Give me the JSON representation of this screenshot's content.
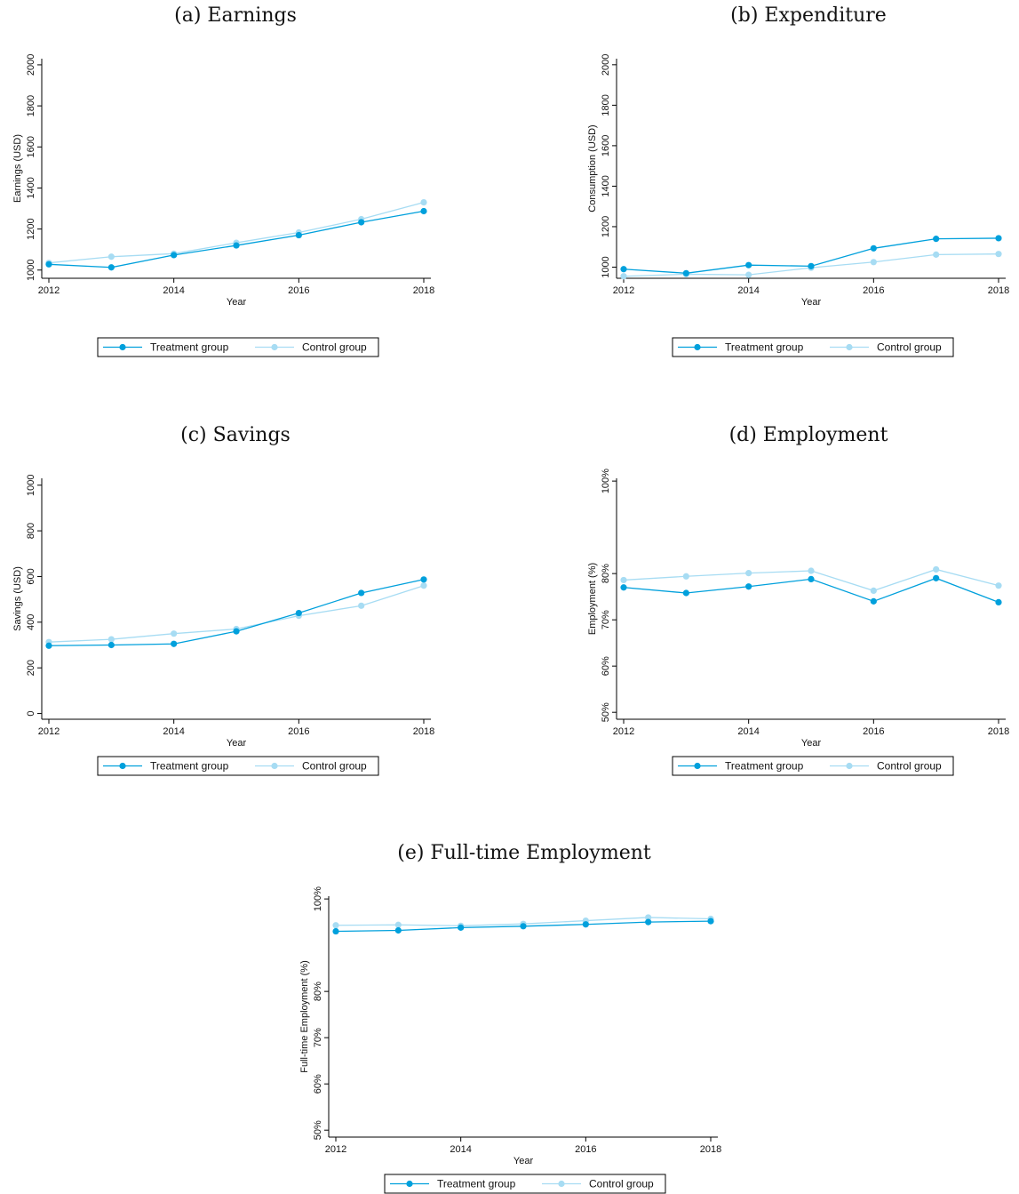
{
  "colors": {
    "treatment": "#00a0dc",
    "control": "#a7dcf3"
  },
  "chart_data": [
    {
      "id": "a",
      "type": "line",
      "title": "(a) Earnings",
      "xlabel": "Year",
      "ylabel": "Earnings (USD)",
      "x": [
        2012,
        2013,
        2014,
        2015,
        2016,
        2017,
        2018
      ],
      "xticks": [
        "2012",
        "2014",
        "2016",
        "2018"
      ],
      "yticks": [
        "1000",
        "1200",
        "1400",
        "1600",
        "1800",
        "2000"
      ],
      "ylim": [
        960,
        2030
      ],
      "grid": false,
      "legend": "bottom",
      "series": [
        {
          "name": "Treatment group",
          "values": [
            1028,
            1013,
            1073,
            1120,
            1170,
            1233,
            1287
          ]
        },
        {
          "name": "Control group",
          "values": [
            1035,
            1065,
            1080,
            1133,
            1183,
            1248,
            1330
          ]
        }
      ]
    },
    {
      "id": "b",
      "type": "line",
      "title": "(b) Expenditure",
      "xlabel": "Year",
      "ylabel": "Consumption (USD)",
      "x": [
        2012,
        2013,
        2014,
        2015,
        2016,
        2017,
        2018
      ],
      "xticks": [
        "2012",
        "2014",
        "2016",
        "2018"
      ],
      "yticks": [
        "1000",
        "1200",
        "1400",
        "1600",
        "1800",
        "2000"
      ],
      "ylim": [
        945,
        2030
      ],
      "grid": false,
      "legend": "bottom",
      "series": [
        {
          "name": "Treatment group",
          "values": [
            990,
            970,
            1010,
            1005,
            1093,
            1140,
            1143
          ]
        },
        {
          "name": "Control group",
          "values": [
            955,
            965,
            962,
            997,
            1025,
            1062,
            1065
          ]
        }
      ]
    },
    {
      "id": "c",
      "type": "line",
      "title": "(c) Savings",
      "xlabel": "Year",
      "ylabel": "Savings (USD)",
      "x": [
        2012,
        2013,
        2014,
        2015,
        2016,
        2017,
        2018
      ],
      "xticks": [
        "2012",
        "2014",
        "2016",
        "2018"
      ],
      "yticks": [
        "0",
        "200",
        "400",
        "600",
        "800",
        "1000"
      ],
      "ylim": [
        -25,
        1030
      ],
      "grid": false,
      "legend": "bottom",
      "series": [
        {
          "name": "Treatment group",
          "values": [
            297,
            300,
            305,
            360,
            440,
            528,
            587
          ]
        },
        {
          "name": "Control group",
          "values": [
            313,
            325,
            350,
            370,
            428,
            472,
            560
          ]
        }
      ]
    },
    {
      "id": "d",
      "type": "line",
      "title": "(d) Employment",
      "xlabel": "Year",
      "ylabel": "Employment (%)",
      "x": [
        2012,
        2013,
        2014,
        2015,
        2016,
        2017,
        2018
      ],
      "xticks": [
        "2012",
        "2014",
        "2016",
        "2018"
      ],
      "yticks": [
        "50%",
        "60%",
        "70%",
        "80%",
        "100%"
      ],
      "yticks_values": [
        50,
        60,
        70,
        80,
        100
      ],
      "ylim": [
        48.5,
        100.6
      ],
      "grid": false,
      "legend": "bottom",
      "series": [
        {
          "name": "Treatment group",
          "values": [
            77.0,
            75.8,
            77.2,
            78.8,
            74.0,
            79.0,
            73.8
          ]
        },
        {
          "name": "Control group",
          "values": [
            78.6,
            79.4,
            80.1,
            80.6,
            76.3,
            80.9,
            77.4
          ]
        }
      ]
    },
    {
      "id": "e",
      "type": "line",
      "title": "(e) Full-time Employment",
      "xlabel": "Year",
      "ylabel": "Full-time Employment (%)",
      "x": [
        2012,
        2013,
        2014,
        2015,
        2016,
        2017,
        2018
      ],
      "xticks": [
        "2012",
        "2014",
        "2016",
        "2018"
      ],
      "yticks": [
        "50%",
        "60%",
        "70%",
        "80%",
        "100%"
      ],
      "yticks_values": [
        50,
        60,
        70,
        80,
        100
      ],
      "ylim": [
        48.5,
        100.6
      ],
      "grid": false,
      "legend": "bottom",
      "series": [
        {
          "name": "Treatment group",
          "values": [
            93.0,
            93.2,
            93.8,
            94.1,
            94.5,
            95.0,
            95.2
          ]
        },
        {
          "name": "Control group",
          "values": [
            94.3,
            94.4,
            94.2,
            94.6,
            95.3,
            96.0,
            95.7
          ]
        }
      ]
    }
  ]
}
